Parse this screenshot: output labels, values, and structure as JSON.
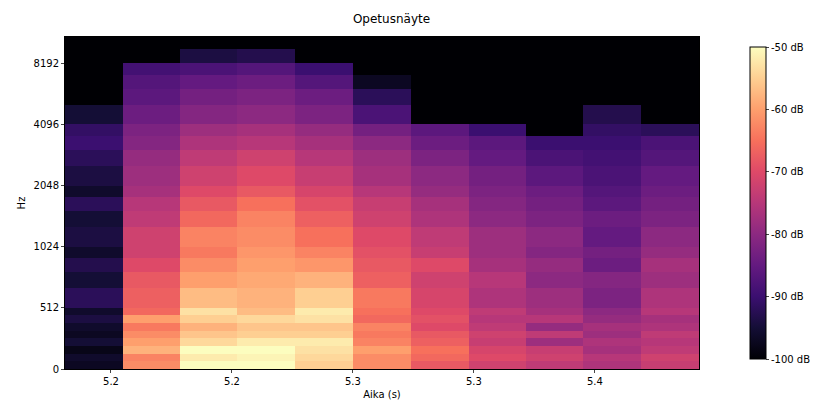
{
  "chart_data": {
    "type": "heatmap",
    "title": "Opetusnäyte",
    "x_label": "Aika (s)",
    "y_label": "Hz",
    "log": "y",
    "grid": false,
    "x": [
      5.193,
      5.217,
      5.24,
      5.264,
      5.288,
      5.312,
      5.336,
      5.36,
      5.383,
      5.407,
      5.431
    ],
    "y_edges": [
      0,
      64,
      128,
      192,
      256,
      320,
      384,
      448,
      512,
      640,
      768,
      896,
      1024,
      1280,
      1536,
      1792,
      2048,
      2560,
      3072,
      3584,
      4096,
      5120,
      6144,
      7168,
      8192,
      9600,
      11025
    ],
    "xlim": [
      5.181,
      5.443
    ],
    "ylim": [
      0,
      11025
    ],
    "xticks": [
      5.2,
      {
        "value": 5.25,
        "label": "5.2"
      },
      5.3,
      {
        "value": 5.35,
        "label": "5.3"
      },
      5.4
    ],
    "yticks": [
      0,
      512,
      1024,
      2048,
      4096,
      8192
    ],
    "colorbar_range": [
      -100,
      -50
    ],
    "colorbar_ticks": [
      {
        "value": -50,
        "label": "-50 dB"
      },
      {
        "value": -60,
        "label": "-60 dB"
      },
      {
        "value": -70,
        "label": "-70 dB"
      },
      {
        "value": -80,
        "label": "-80 dB"
      },
      {
        "value": -90,
        "label": "-90 dB"
      },
      {
        "value": -100,
        "label": "-100 dB"
      }
    ],
    "cells": [
      [
        -97,
        -62,
        -50,
        -50,
        -55,
        -62,
        -68,
        -72,
        -74,
        -76,
        -73
      ],
      [
        -96,
        -63,
        -52,
        -51,
        -54,
        -62,
        -66,
        -70,
        -72,
        -75,
        -72
      ],
      [
        -98,
        -58,
        -50,
        -50,
        -53,
        -60,
        -65,
        -71,
        -73,
        -77,
        -74
      ],
      [
        -95,
        -60,
        -54,
        -52,
        -52,
        -63,
        -67,
        -73,
        -78,
        -76,
        -75
      ],
      [
        -97,
        -62,
        -56,
        -55,
        -55,
        -64,
        -68,
        -72,
        -74,
        -78,
        -74
      ],
      [
        -96,
        -64,
        -58,
        -56,
        -56,
        -63,
        -70,
        -74,
        -79,
        -77,
        -76
      ],
      [
        -94,
        -60,
        -55,
        -54,
        -53,
        -66,
        -69,
        -75,
        -75,
        -79,
        -77
      ],
      [
        -96,
        -66,
        -53,
        -57,
        -52,
        -65,
        -70,
        -74,
        -77,
        -80,
        -75
      ],
      [
        -92,
        -67,
        -57,
        -58,
        -55,
        -64,
        -71,
        -76,
        -78,
        -82,
        -76
      ],
      [
        -95,
        -68,
        -60,
        -59,
        -58,
        -67,
        -72,
        -75,
        -80,
        -81,
        -78
      ],
      [
        -93,
        -70,
        -62,
        -60,
        -61,
        -68,
        -70,
        -77,
        -79,
        -84,
        -77
      ],
      [
        -96,
        -72,
        -64,
        -61,
        -63,
        -69,
        -73,
        -78,
        -81,
        -83,
        -79
      ],
      [
        -94,
        -72,
        -63,
        -62,
        -65,
        -70,
        -74,
        -78,
        -80,
        -85,
        -80
      ],
      [
        -95,
        -74,
        -66,
        -63,
        -67,
        -72,
        -76,
        -80,
        -82,
        -84,
        -82
      ],
      [
        -92,
        -75,
        -68,
        -65,
        -69,
        -73,
        -77,
        -81,
        -83,
        -86,
        -83
      ],
      [
        -96,
        -77,
        -70,
        -68,
        -71,
        -75,
        -79,
        -82,
        -84,
        -87,
        -84
      ],
      [
        -94,
        -78,
        -72,
        -70,
        -73,
        -77,
        -80,
        -83,
        -86,
        -88,
        -85
      ],
      [
        -92,
        -79,
        -74,
        -72,
        -75,
        -78,
        -82,
        -85,
        -88,
        -89,
        -87
      ],
      [
        -90,
        -81,
        -76,
        -75,
        -77,
        -80,
        -84,
        -86,
        -90,
        -90,
        -88
      ],
      [
        -91,
        -82,
        -78,
        -77,
        -79,
        -83,
        -86,
        -90,
        -100,
        -91,
        -92
      ],
      [
        -95,
        -84,
        -81,
        -80,
        -82,
        -88,
        -100,
        -100,
        -100,
        -93,
        -100
      ],
      [
        -100,
        -86,
        -83,
        -82,
        -84,
        -92,
        -100,
        -100,
        -100,
        -100,
        -100
      ],
      [
        -100,
        -87,
        -85,
        -84,
        -87,
        -97,
        -100,
        -100,
        -100,
        -100,
        -100
      ],
      [
        -100,
        -89,
        -88,
        -87,
        -90,
        -100,
        -100,
        -100,
        -100,
        -100,
        -100
      ],
      [
        -100,
        -100,
        -94,
        -93,
        -100,
        -100,
        -100,
        -100,
        -100,
        -100,
        -100
      ],
      [
        -100,
        -100,
        -100,
        -100,
        -100,
        -100,
        -100,
        -100,
        -100,
        -100,
        -100
      ]
    ]
  }
}
